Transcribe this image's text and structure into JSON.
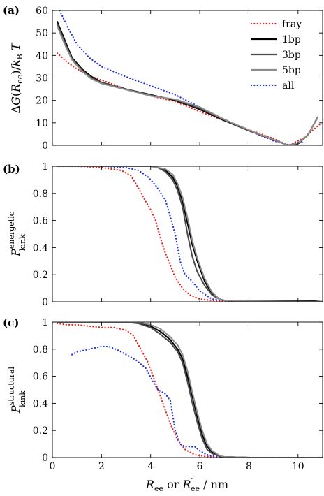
{
  "chart_data": [
    {
      "panel": "(a)",
      "type": "line",
      "ylabel": "ΔG(R_ee)/k_B T",
      "xlim": [
        0,
        11
      ],
      "ylim": [
        0,
        60
      ],
      "xticks": [
        0,
        2,
        4,
        6,
        8,
        10
      ],
      "yticks": [
        0,
        10,
        20,
        30,
        40,
        50,
        60
      ],
      "xtick_labels": [
        "",
        "",
        "",
        "",
        "",
        ""
      ],
      "ytick_labels": [
        "0",
        "10",
        "20",
        "30",
        "40",
        "50",
        "60"
      ],
      "legend": {
        "position": "top-right",
        "entries": [
          "fray",
          "1bp",
          "3bp",
          "5bp",
          "all"
        ]
      },
      "series": [
        {
          "name": "fray",
          "color": "#e8231f",
          "style": "dotted",
          "x": [
            0.2,
            0.6,
            1.0,
            1.5,
            2.0,
            3.0,
            4.0,
            5.0,
            6.0,
            7.0,
            8.0,
            9.0,
            9.6,
            10.2,
            10.9
          ],
          "y": [
            41,
            37,
            34,
            31,
            29,
            25,
            22,
            19.5,
            15,
            11,
            7,
            3,
            0,
            3,
            9.5
          ]
        },
        {
          "name": "1bp",
          "color": "#000000",
          "style": "solid",
          "x": [
            0.2,
            0.5,
            0.8,
            1.2,
            1.6,
            2.0,
            3.0,
            4.0,
            5.0,
            6.0,
            7.0,
            8.0,
            9.0,
            9.6,
            10.0,
            10.4,
            10.8
          ],
          "y": [
            55,
            47,
            39,
            34,
            30.5,
            28,
            25,
            22.5,
            20,
            16,
            11,
            6.5,
            2.5,
            0,
            0.8,
            4.5,
            12.5
          ]
        },
        {
          "name": "3bp",
          "color": "#4a4a4a",
          "style": "solid",
          "x": [
            0.2,
            0.5,
            0.8,
            1.2,
            1.6,
            2.0,
            3.0,
            4.0,
            5.0,
            6.0,
            7.0,
            8.0,
            9.0,
            9.6,
            10.0,
            10.4,
            10.8
          ],
          "y": [
            54,
            46,
            38.5,
            33.5,
            30,
            28,
            25,
            22.3,
            20.3,
            16.5,
            11.3,
            6.5,
            2.5,
            0,
            1,
            4.5,
            12.5
          ]
        },
        {
          "name": "5bp",
          "color": "#8c8c8c",
          "style": "solid",
          "x": [
            0.2,
            0.5,
            0.8,
            1.2,
            1.6,
            2.0,
            3.0,
            4.0,
            5.0,
            6.0,
            7.0,
            8.0,
            9.0,
            9.6,
            10.0,
            10.4,
            10.8
          ],
          "y": [
            53,
            45,
            38,
            33,
            29.5,
            27.5,
            24.8,
            22,
            20.5,
            17,
            11.5,
            6.8,
            2.5,
            0,
            1,
            4.5,
            12.3
          ]
        },
        {
          "name": "all",
          "color": "#2233dd",
          "style": "dotted",
          "x": [
            0.3,
            0.6,
            1.0,
            1.5,
            2.0,
            3.0,
            4.0,
            5.0,
            6.0,
            7.0,
            8.0,
            9.0,
            9.7,
            10.2
          ],
          "y": [
            60,
            53,
            45,
            39,
            35,
            30.5,
            26.5,
            22.5,
            17,
            11.5,
            6.5,
            2,
            0,
            1.5
          ]
        }
      ]
    },
    {
      "panel": "(b)",
      "type": "line",
      "ylabel": "P_kink^energetic",
      "xlim": [
        0,
        11
      ],
      "ylim": [
        0,
        1
      ],
      "xticks": [
        0,
        2,
        4,
        6,
        8,
        10
      ],
      "yticks": [
        0,
        0.2,
        0.4,
        0.6,
        0.8,
        1
      ],
      "xtick_labels": [
        "",
        "",
        "",
        "",
        "",
        ""
      ],
      "ytick_labels": [
        "0",
        "0.2",
        "0.4",
        "0.6",
        "0.8",
        "1"
      ],
      "series": [
        {
          "name": "fray",
          "color": "#e8231f",
          "style": "dotted",
          "x": [
            0.2,
            1.0,
            2.0,
            2.8,
            3.2,
            3.5,
            3.8,
            4.0,
            4.2,
            4.4,
            4.6,
            4.8,
            5.0,
            5.3,
            5.6,
            6.0,
            6.5,
            7.0,
            8.0,
            11.0
          ],
          "y": [
            1,
            1,
            0.99,
            0.97,
            0.93,
            0.84,
            0.74,
            0.68,
            0.6,
            0.47,
            0.36,
            0.27,
            0.18,
            0.1,
            0.05,
            0.02,
            0.01,
            0.005,
            0.003,
            0.0
          ]
        },
        {
          "name": "all",
          "color": "#2233dd",
          "style": "dotted",
          "x": [
            0.2,
            2.0,
            3.0,
            3.5,
            3.9,
            4.2,
            4.6,
            4.8,
            5.0,
            5.2,
            5.4,
            5.7,
            6.0,
            6.5,
            7.0,
            8.0,
            11.0
          ],
          "y": [
            1,
            1,
            0.99,
            0.97,
            0.92,
            0.86,
            0.75,
            0.63,
            0.5,
            0.3,
            0.2,
            0.15,
            0.08,
            0.02,
            0.01,
            0.005,
            0.0
          ]
        },
        {
          "name": "1bp",
          "color": "#000000",
          "style": "solid",
          "x": [
            0.2,
            3.0,
            4.0,
            4.3,
            4.6,
            4.9,
            5.1,
            5.3,
            5.5,
            5.7,
            5.9,
            6.2,
            6.5,
            6.8,
            7.0,
            8.0,
            10.0,
            10.4,
            11.0
          ],
          "y": [
            1,
            1,
            1,
            0.99,
            0.97,
            0.92,
            0.85,
            0.74,
            0.58,
            0.42,
            0.3,
            0.15,
            0.06,
            0.02,
            0.01,
            0.005,
            0.005,
            0.01,
            0.0
          ]
        },
        {
          "name": "3bp",
          "color": "#4a4a4a",
          "style": "solid",
          "x": [
            0.2,
            3.0,
            4.0,
            4.3,
            4.6,
            4.9,
            5.1,
            5.3,
            5.5,
            5.7,
            5.9,
            6.2,
            6.5,
            6.8,
            7.0,
            8.0,
            11.0
          ],
          "y": [
            1,
            1,
            1,
            0.99,
            0.96,
            0.9,
            0.82,
            0.7,
            0.5,
            0.33,
            0.22,
            0.12,
            0.05,
            0.02,
            0.01,
            0.005,
            0.0
          ]
        },
        {
          "name": "5bp",
          "color": "#8c8c8c",
          "style": "solid",
          "x": [
            0.2,
            3.0,
            4.0,
            4.3,
            4.6,
            4.9,
            5.1,
            5.3,
            5.5,
            5.7,
            5.9,
            6.2,
            6.5,
            6.8,
            7.0,
            8.0,
            11.0
          ],
          "y": [
            1,
            1,
            1,
            0.99,
            0.98,
            0.94,
            0.87,
            0.77,
            0.62,
            0.45,
            0.32,
            0.17,
            0.07,
            0.02,
            0.01,
            0.005,
            0.0
          ]
        }
      ]
    },
    {
      "panel": "(c)",
      "type": "line",
      "ylabel": "P_kink^structural",
      "xlabel": "R_ee or R'_ee / nm",
      "xlim": [
        0,
        11
      ],
      "ylim": [
        0,
        1
      ],
      "xticks": [
        0,
        2,
        4,
        6,
        8,
        10
      ],
      "yticks": [
        0,
        0.2,
        0.4,
        0.6,
        0.8,
        1
      ],
      "xtick_labels": [
        "0",
        "2",
        "4",
        "6",
        "8",
        "10"
      ],
      "ytick_labels": [
        "0",
        "0.2",
        "0.4",
        "0.6",
        "0.8",
        "1"
      ],
      "series": [
        {
          "name": "fray",
          "color": "#e8231f",
          "style": "dotted",
          "x": [
            0.2,
            0.6,
            1.0,
            1.5,
            2.0,
            2.5,
            3.0,
            3.3,
            3.6,
            3.9,
            4.2,
            4.5,
            4.8,
            5.1,
            5.4,
            5.8,
            6.2,
            6.6,
            7.0,
            8.0,
            11.0
          ],
          "y": [
            0.99,
            0.98,
            0.98,
            0.97,
            0.96,
            0.96,
            0.94,
            0.9,
            0.8,
            0.7,
            0.55,
            0.4,
            0.25,
            0.13,
            0.06,
            0.02,
            0.01,
            0.005,
            0.003,
            0.0,
            0.0
          ]
        },
        {
          "name": "all",
          "color": "#2233dd",
          "style": "dotted",
          "x": [
            0.8,
            1.0,
            1.5,
            2.0,
            2.3,
            2.7,
            3.0,
            3.4,
            3.8,
            4.1,
            4.3,
            4.6,
            4.8,
            5.0,
            5.2,
            5.4,
            5.8,
            6.0,
            6.3,
            6.6,
            7.0,
            8.0,
            11.0
          ],
          "y": [
            0.76,
            0.78,
            0.8,
            0.82,
            0.82,
            0.79,
            0.76,
            0.72,
            0.66,
            0.56,
            0.5,
            0.47,
            0.42,
            0.2,
            0.1,
            0.08,
            0.08,
            0.05,
            0.02,
            0.01,
            0.005,
            0.0,
            0.0
          ]
        },
        {
          "name": "1bp",
          "color": "#000000",
          "style": "solid",
          "x": [
            0.2,
            2.0,
            3.0,
            3.5,
            4.0,
            4.4,
            4.8,
            5.1,
            5.3,
            5.5,
            5.7,
            5.9,
            6.1,
            6.3,
            6.5,
            6.8,
            7.0,
            8.0,
            11.0
          ],
          "y": [
            1,
            1,
            1,
            0.99,
            0.97,
            0.93,
            0.87,
            0.8,
            0.73,
            0.6,
            0.45,
            0.3,
            0.17,
            0.08,
            0.04,
            0.01,
            0.005,
            0.0,
            0.0
          ]
        },
        {
          "name": "3bp",
          "color": "#4a4a4a",
          "style": "solid",
          "x": [
            0.2,
            2.0,
            3.0,
            3.5,
            4.0,
            4.4,
            4.8,
            5.1,
            5.3,
            5.5,
            5.7,
            5.9,
            6.1,
            6.3,
            6.5,
            6.8,
            7.0,
            8.0,
            11.0
          ],
          "y": [
            1,
            1,
            1,
            0.99,
            0.96,
            0.91,
            0.85,
            0.78,
            0.7,
            0.56,
            0.4,
            0.26,
            0.14,
            0.06,
            0.03,
            0.01,
            0.005,
            0.0,
            0.0
          ]
        },
        {
          "name": "5bp",
          "color": "#8c8c8c",
          "style": "solid",
          "x": [
            0.2,
            2.0,
            3.0,
            3.5,
            4.0,
            4.4,
            4.8,
            5.1,
            5.3,
            5.5,
            5.7,
            5.9,
            6.1,
            6.3,
            6.5,
            6.8,
            7.0,
            8.0,
            11.0
          ],
          "y": [
            1,
            1,
            1,
            1,
            0.98,
            0.95,
            0.89,
            0.83,
            0.76,
            0.64,
            0.48,
            0.33,
            0.2,
            0.1,
            0.05,
            0.015,
            0.005,
            0.0,
            0.0
          ]
        }
      ]
    }
  ]
}
